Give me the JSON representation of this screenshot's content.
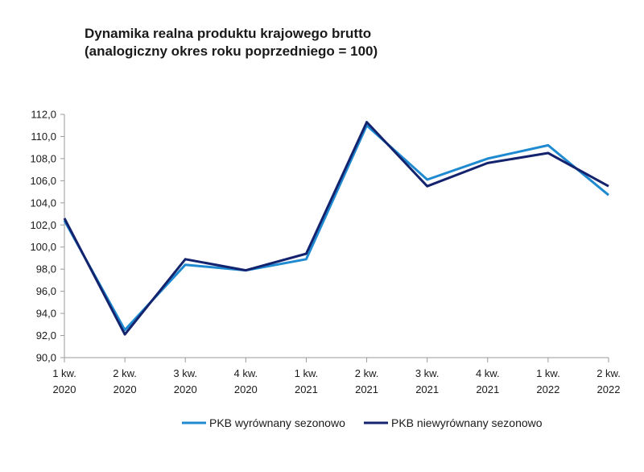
{
  "chart_data": {
    "type": "line",
    "title_lines": [
      "Dynamika realna produktu krajowego brutto",
      "(analogiczny okres roku poprzedniego = 100)"
    ],
    "xlabel": "",
    "ylabel": "",
    "categories": [
      [
        "1 kw.",
        "2020"
      ],
      [
        "2 kw.",
        "2020"
      ],
      [
        "3 kw.",
        "2020"
      ],
      [
        "4 kw.",
        "2020"
      ],
      [
        "1 kw.",
        "2021"
      ],
      [
        "2 kw.",
        "2021"
      ],
      [
        "3 kw.",
        "2021"
      ],
      [
        "4 kw.",
        "2021"
      ],
      [
        "1 kw.",
        "2022"
      ],
      [
        "2 kw.",
        "2022"
      ]
    ],
    "ylim": [
      90,
      112
    ],
    "yticks": [
      "90,0",
      "92,0",
      "94,0",
      "96,0",
      "98,0",
      "100,0",
      "102,0",
      "104,0",
      "106,0",
      "108,0",
      "110,0",
      "112,0"
    ],
    "series": [
      {
        "name": "PKB wyrównany sezonowo",
        "color": "#1f8ad0",
        "values": [
          102.4,
          92.5,
          98.4,
          97.9,
          98.9,
          111.0,
          106.1,
          108.0,
          109.2,
          104.7
        ]
      },
      {
        "name": "PKB niewyrównany sezonowo",
        "color": "#14236e",
        "values": [
          102.6,
          92.1,
          98.9,
          97.9,
          99.4,
          111.3,
          105.5,
          107.6,
          108.5,
          105.5
        ]
      }
    ],
    "grid": false,
    "legend_position": "bottom"
  }
}
